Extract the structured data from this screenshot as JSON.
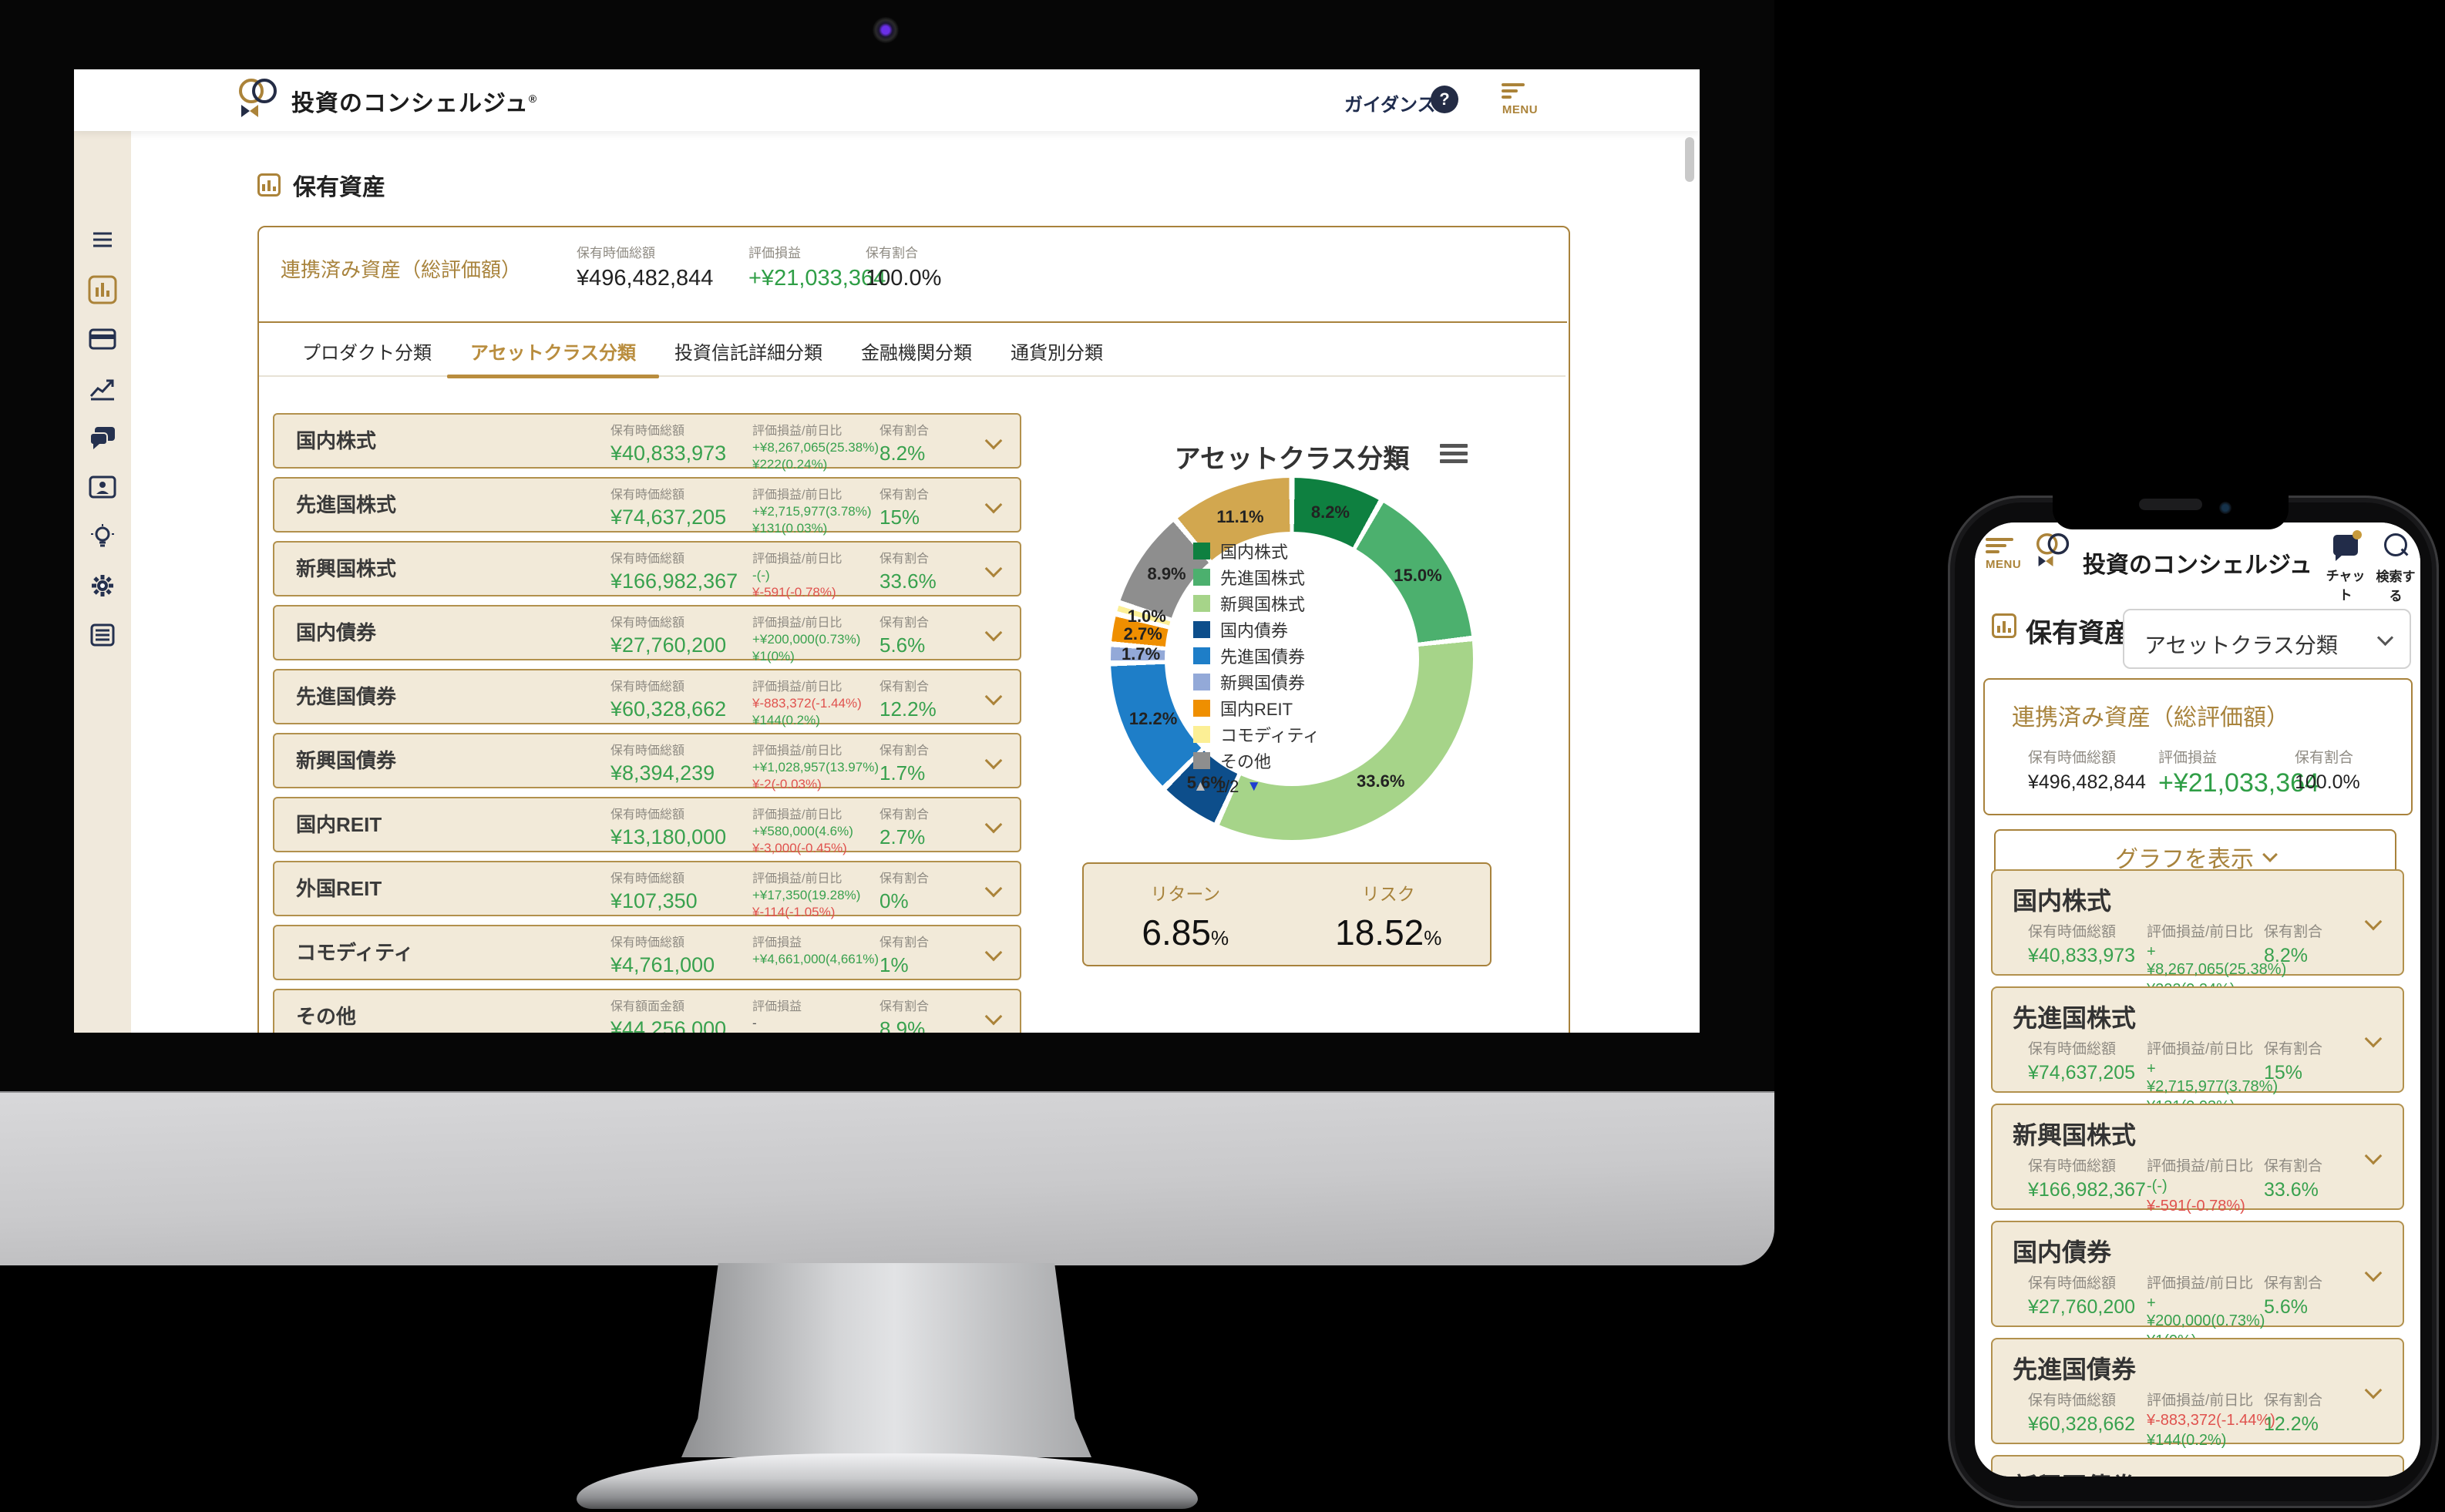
{
  "desktop": {
    "header": {
      "logo_text": "投資のコンシェルジュ",
      "logo_reg": "®",
      "guidance_label": "ガイダンス",
      "help_glyph": "?",
      "menu_label": "MENU"
    },
    "sidebar_icons": [
      "menu-icon",
      "bar-chart-icon",
      "credit-card-icon",
      "line-chart-icon",
      "chat-icon",
      "contact-card-icon",
      "lightbulb-icon",
      "gear-icon",
      "news-icon"
    ],
    "page_title": "保有資産",
    "summary": {
      "title": "連携済み資産（総評価額）",
      "cols": [
        {
          "label": "保有時価総額",
          "value": "¥496,482,844",
          "tone": "dark"
        },
        {
          "label": "評価損益",
          "value": "+¥21,033,364",
          "tone": "green"
        },
        {
          "label": "保有割合",
          "value": "100.0%",
          "tone": "dark"
        }
      ]
    },
    "tabs": [
      {
        "label": "プロダクト分類",
        "active": false
      },
      {
        "label": "アセットクラス分類",
        "active": true
      },
      {
        "label": "投資信託詳細分類",
        "active": false
      },
      {
        "label": "金融機関分類",
        "active": false
      },
      {
        "label": "通貨別分類",
        "active": false
      }
    ],
    "assets": [
      {
        "name": "国内株式",
        "amount_label": "保有時価総額",
        "amount": "¥40,833,973",
        "pl_label": "評価損益/前日比",
        "pl_lines": [
          {
            "text": "+¥8,267,065(25.38%)",
            "tone": "green"
          },
          {
            "text": "¥222(0.24%)",
            "tone": "green"
          }
        ],
        "ratio_label": "保有割合",
        "ratio": "8.2%"
      },
      {
        "name": "先進国株式",
        "amount_label": "保有時価総額",
        "amount": "¥74,637,205",
        "pl_label": "評価損益/前日比",
        "pl_lines": [
          {
            "text": "+¥2,715,977(3.78%)",
            "tone": "green"
          },
          {
            "text": "¥131(0.03%)",
            "tone": "green"
          }
        ],
        "ratio_label": "保有割合",
        "ratio": "15%"
      },
      {
        "name": "新興国株式",
        "amount_label": "保有時価総額",
        "amount": "¥166,982,367",
        "pl_label": "評価損益/前日比",
        "pl_lines": [
          {
            "text": "-(-)",
            "tone": "green"
          },
          {
            "text": "¥-591(-0.78%)",
            "tone": "red"
          }
        ],
        "ratio_label": "保有割合",
        "ratio": "33.6%"
      },
      {
        "name": "国内債券",
        "amount_label": "保有時価総額",
        "amount": "¥27,760,200",
        "pl_label": "評価損益/前日比",
        "pl_lines": [
          {
            "text": "+¥200,000(0.73%)",
            "tone": "green"
          },
          {
            "text": "¥1(0%)",
            "tone": "green"
          }
        ],
        "ratio_label": "保有割合",
        "ratio": "5.6%"
      },
      {
        "name": "先進国債券",
        "amount_label": "保有時価総額",
        "amount": "¥60,328,662",
        "pl_label": "評価損益/前日比",
        "pl_lines": [
          {
            "text": "¥-883,372(-1.44%)",
            "tone": "red"
          },
          {
            "text": "¥144(0.2%)",
            "tone": "green"
          }
        ],
        "ratio_label": "保有割合",
        "ratio": "12.2%"
      },
      {
        "name": "新興国債券",
        "amount_label": "保有時価総額",
        "amount": "¥8,394,239",
        "pl_label": "評価損益/前日比",
        "pl_lines": [
          {
            "text": "+¥1,028,957(13.97%)",
            "tone": "green"
          },
          {
            "text": "¥-2(-0.03%)",
            "tone": "red"
          }
        ],
        "ratio_label": "保有割合",
        "ratio": "1.7%"
      },
      {
        "name": "国内REIT",
        "amount_label": "保有時価総額",
        "amount": "¥13,180,000",
        "pl_label": "評価損益/前日比",
        "pl_lines": [
          {
            "text": "+¥580,000(4.6%)",
            "tone": "green"
          },
          {
            "text": "¥-3,000(-0.45%)",
            "tone": "red"
          }
        ],
        "ratio_label": "保有割合",
        "ratio": "2.7%"
      },
      {
        "name": "外国REIT",
        "amount_label": "保有時価総額",
        "amount": "¥107,350",
        "pl_label": "評価損益/前日比",
        "pl_lines": [
          {
            "text": "+¥17,350(19.28%)",
            "tone": "green"
          },
          {
            "text": "¥-114(-1.05%)",
            "tone": "red"
          }
        ],
        "ratio_label": "保有割合",
        "ratio": "0%"
      },
      {
        "name": "コモディティ",
        "amount_label": "保有時価総額",
        "amount": "¥4,761,000",
        "pl_label": "評価損益",
        "pl_lines": [
          {
            "text": "+¥4,661,000(4,661%)",
            "tone": "green"
          }
        ],
        "ratio_label": "保有割合",
        "ratio": "1%"
      },
      {
        "name": "その他",
        "amount_label": "保有額面金額",
        "amount": "¥44,256,000",
        "pl_label": "評価損益",
        "pl_lines": [
          {
            "text": "-",
            "tone": "dark"
          }
        ],
        "ratio_label": "保有割合",
        "ratio": "8.9%"
      }
    ],
    "chart": {
      "title": "アセットクラス分類",
      "type": "donut",
      "segments": [
        {
          "name": "国内株式",
          "pct": 8.2,
          "label": "8.2%",
          "color": "#0e8040",
          "in_legend": true
        },
        {
          "name": "先進国株式",
          "pct": 15.0,
          "label": "15.0%",
          "color": "#4cb06e",
          "in_legend": true
        },
        {
          "name": "新興国株式",
          "pct": 33.6,
          "label": "33.6%",
          "color": "#a6d489",
          "in_legend": true
        },
        {
          "name": "国内債券",
          "pct": 5.6,
          "label": "5.6%",
          "color": "#0d4e8b",
          "in_legend": true
        },
        {
          "name": "先進国債券",
          "pct": 12.2,
          "label": "12.2%",
          "color": "#1e7ec8",
          "in_legend": true
        },
        {
          "name": "新興国債券",
          "pct": 1.7,
          "label": "1.7%",
          "color": "#93a9d8",
          "in_legend": true
        },
        {
          "name": "国内REIT",
          "pct": 2.7,
          "label": "2.7%",
          "color": "#ef8f00",
          "in_legend": true
        },
        {
          "name": "コモディティ",
          "pct": 1.0,
          "label": "1.0%",
          "color": "#fcef95",
          "in_legend": true
        },
        {
          "name": "その他",
          "pct": 8.9,
          "label": "8.9%",
          "color": "#8e8e8e",
          "in_legend": true
        },
        {
          "name": "",
          "pct": 11.1,
          "label": "11.1%",
          "color": "#d2a74f",
          "in_legend": false
        }
      ],
      "pagination": {
        "up": "▲",
        "text": "1/2",
        "down": "▼"
      }
    },
    "metrics": {
      "return": {
        "label": "リターン",
        "value": "6.85",
        "unit": "%"
      },
      "risk": {
        "label": "リスク",
        "value": "18.52",
        "unit": "%"
      }
    }
  },
  "phone": {
    "header": {
      "menu_label": "MENU",
      "logo_text": "投資のコンシェルジュ",
      "chat_label": "チャット",
      "search_label": "検索する"
    },
    "page_title": "保有資産",
    "filter_select": "アセットクラス分類",
    "summary": {
      "title": "連携済み資産（総評価額）",
      "cols": [
        {
          "label": "保有時価総額",
          "value": "¥496,482,844",
          "tone": "dark"
        },
        {
          "label": "評価損益",
          "value": "+¥21,033,364",
          "tone": "green"
        },
        {
          "label": "保有割合",
          "value": "100.0%",
          "tone": "dark"
        }
      ]
    },
    "graph_button": "グラフを表示",
    "visible_row_count": 6
  }
}
